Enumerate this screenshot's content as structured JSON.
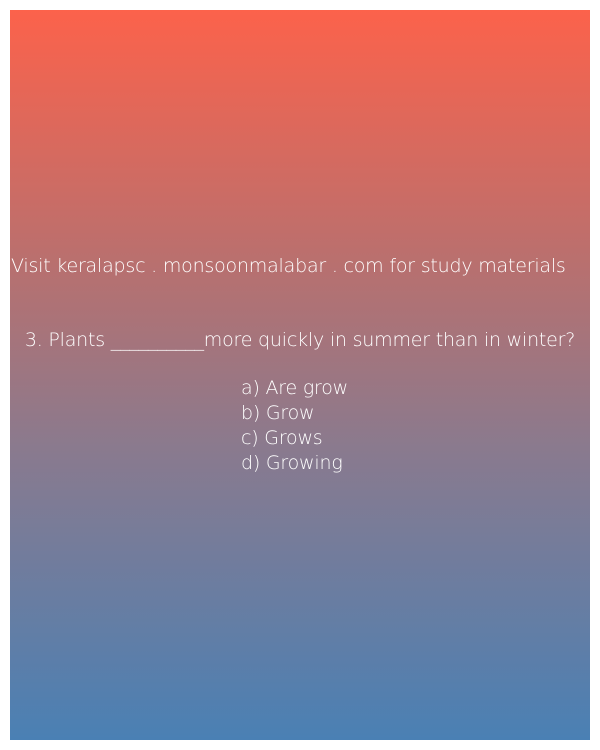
{
  "promo_text": "Visit keralapsc . monsoonmalabar . com for study materials",
  "question": {
    "text": "3. Plants __________more quickly in summer than in winter?"
  },
  "options": [
    "a) Are grow",
    "b) Grow",
    "c) Grows",
    "d) Growing"
  ],
  "colors": {
    "gradient_top": "#fc624b",
    "gradient_bottom": "#4a80b4",
    "text": "#ffffff"
  }
}
